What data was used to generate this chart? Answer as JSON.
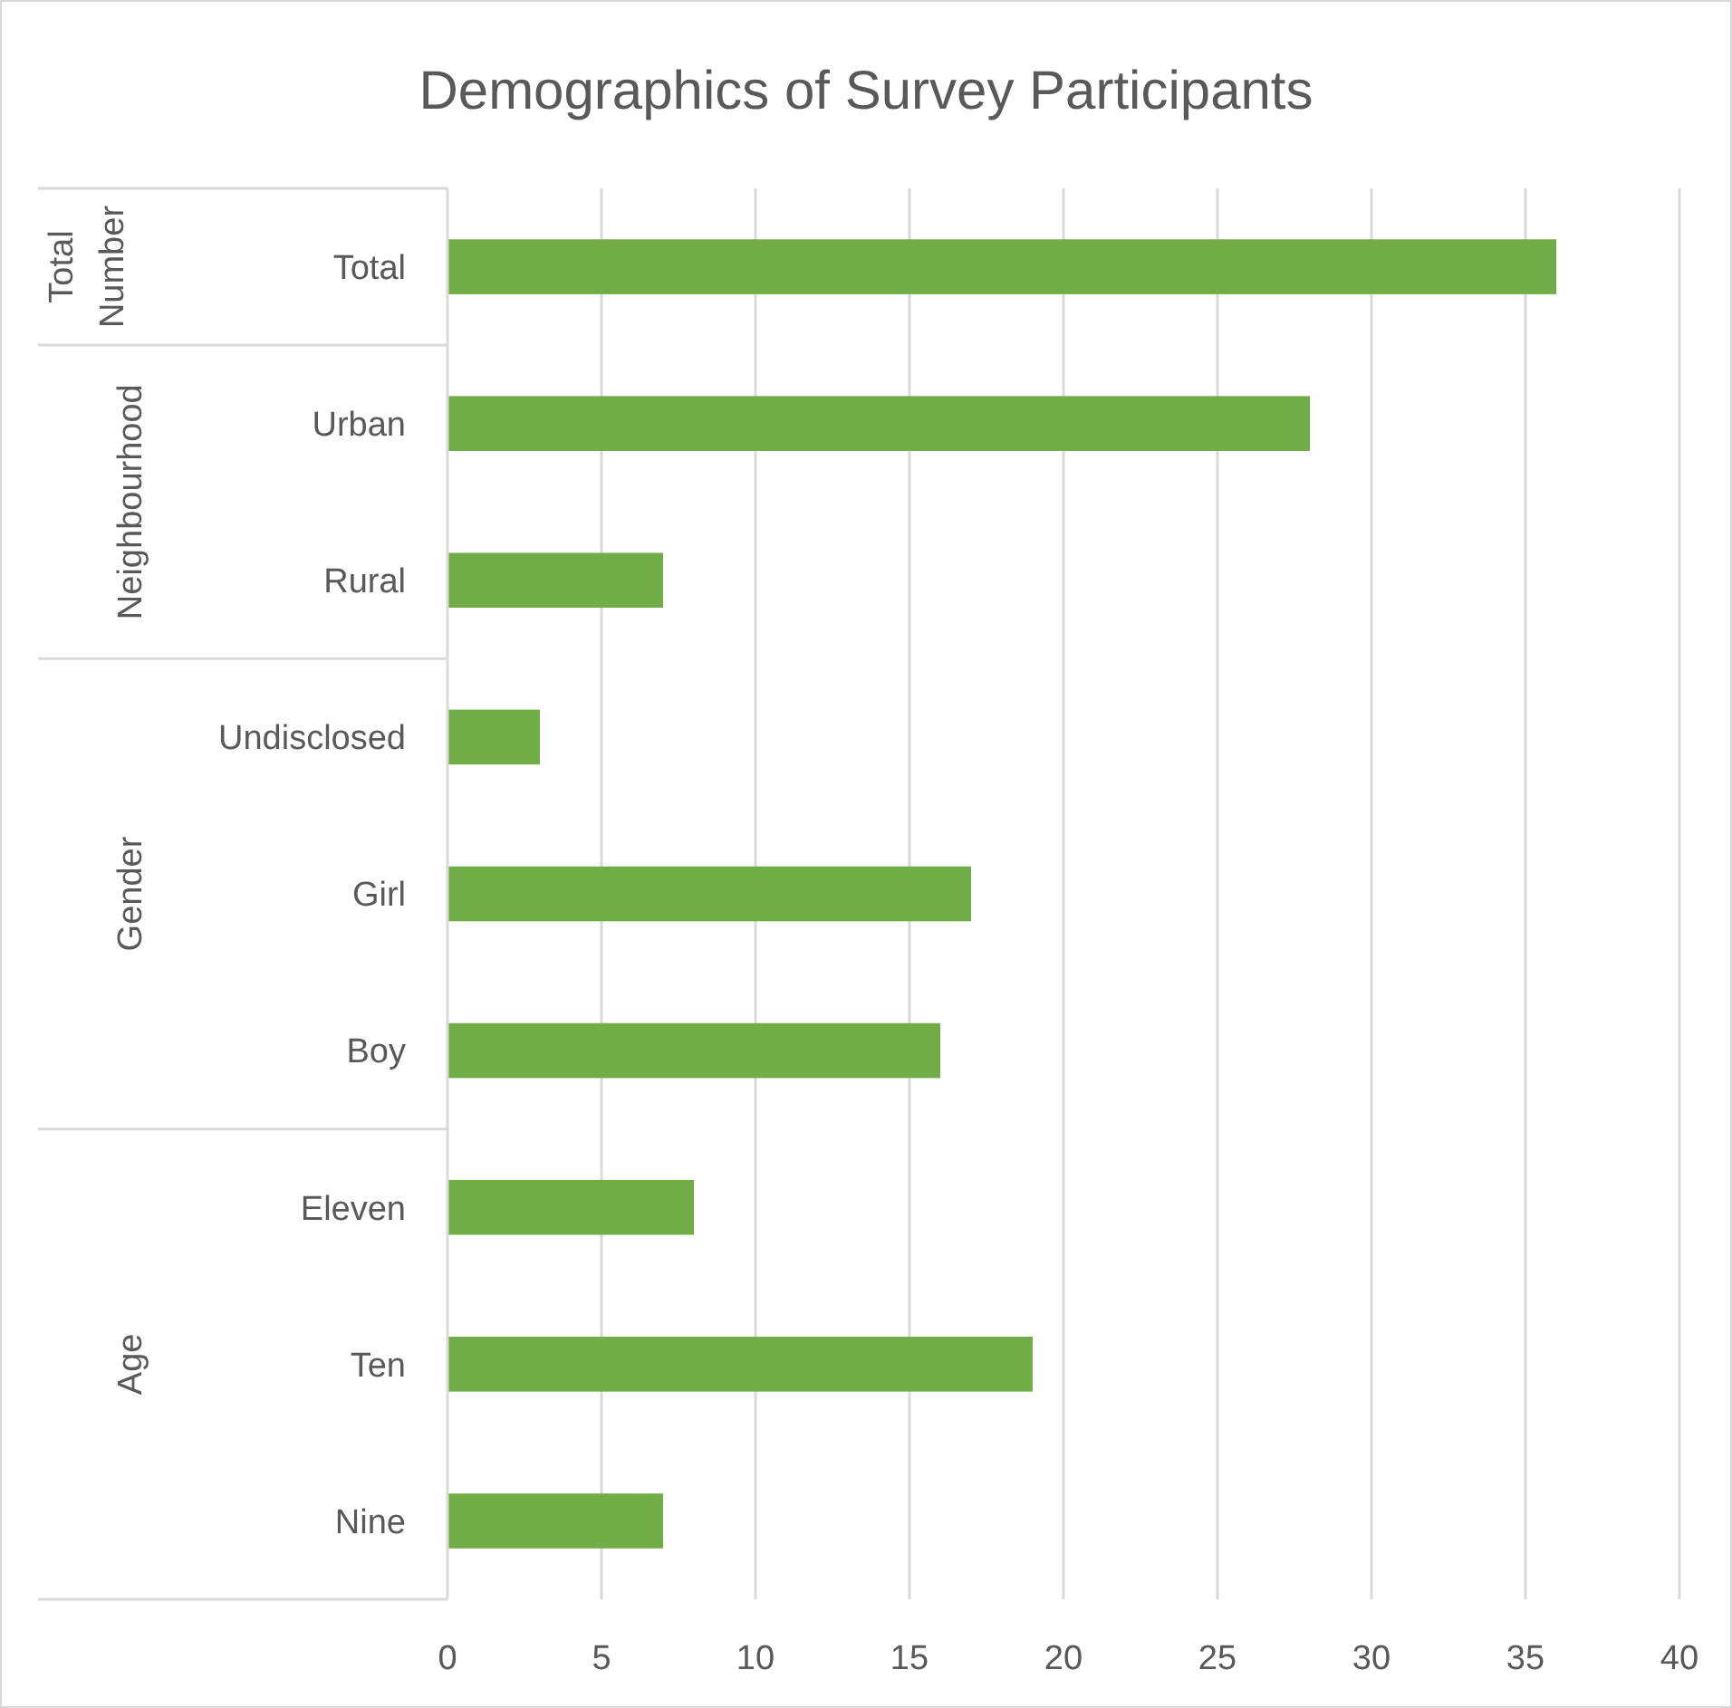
{
  "chart_data": {
    "type": "bar",
    "orientation": "horizontal",
    "title": "Demographics of Survey Participants",
    "categories": [
      "Total",
      "Urban",
      "Rural",
      "Undisclosed",
      "Girl",
      "Boy",
      "Eleven",
      "Ten",
      "Nine"
    ],
    "values": [
      36,
      28,
      7,
      3,
      17,
      16,
      8,
      19,
      7
    ],
    "color": "#70ad47",
    "xlim": [
      0,
      40
    ],
    "xticks": [
      0,
      5,
      10,
      15,
      20,
      25,
      30,
      35,
      40
    ],
    "grid": "x",
    "annotations": [
      "Total Number",
      "Neighbourhood",
      "Gender",
      "Age"
    ]
  }
}
